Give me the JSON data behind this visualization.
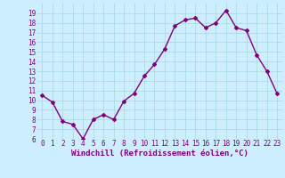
{
  "x": [
    0,
    1,
    2,
    3,
    4,
    5,
    6,
    7,
    8,
    9,
    10,
    11,
    12,
    13,
    14,
    15,
    16,
    17,
    18,
    19,
    20,
    21,
    22,
    23
  ],
  "y": [
    10.5,
    9.8,
    7.8,
    7.5,
    6.0,
    8.0,
    8.5,
    8.0,
    9.9,
    10.7,
    12.5,
    13.7,
    15.3,
    17.7,
    18.3,
    18.5,
    17.5,
    18.0,
    19.3,
    17.5,
    17.2,
    14.7,
    13.0,
    10.7
  ],
  "line_color": "#800080",
  "marker": "D",
  "marker_size": 2,
  "bg_color": "#cceeff",
  "grid_color": "#aadddd",
  "xlabel": "Windchill (Refroidissement éolien,°C)",
  "xlabel_color": "#800080",
  "tick_color": "#800080",
  "ylim": [
    6,
    20
  ],
  "xlim": [
    -0.5,
    23.5
  ],
  "yticks": [
    6,
    7,
    8,
    9,
    10,
    11,
    12,
    13,
    14,
    15,
    16,
    17,
    18,
    19
  ],
  "xticks": [
    0,
    1,
    2,
    3,
    4,
    5,
    6,
    7,
    8,
    9,
    10,
    11,
    12,
    13,
    14,
    15,
    16,
    17,
    18,
    19,
    20,
    21,
    22,
    23
  ],
  "line_width": 1.0,
  "tick_fontsize": 5.5,
  "xlabel_fontsize": 6.5
}
